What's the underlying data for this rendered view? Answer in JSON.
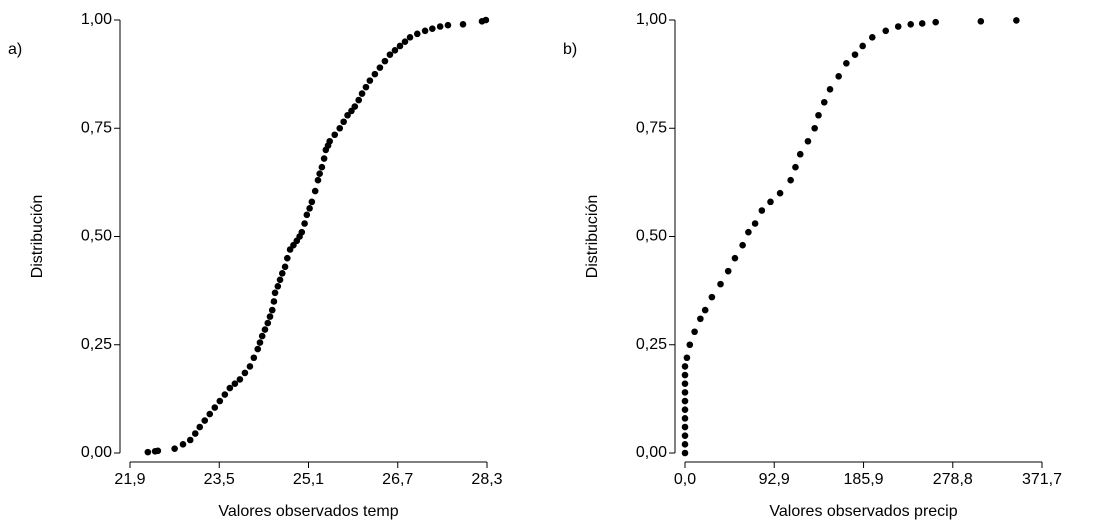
{
  "chart_data": [
    {
      "type": "scatter",
      "panel_label": "a)",
      "x_label": "Valores observados temp",
      "y_label": "Distribución",
      "color": "#000000",
      "x": [
        22.22,
        22.35,
        22.4,
        22.7,
        22.85,
        22.98,
        23.07,
        23.15,
        23.24,
        23.33,
        23.42,
        23.51,
        23.6,
        23.69,
        23.78,
        23.87,
        23.96,
        24.05,
        24.12,
        24.19,
        24.23,
        24.27,
        24.32,
        24.37,
        24.41,
        24.45,
        24.48,
        24.5,
        24.55,
        24.59,
        24.63,
        24.68,
        24.72,
        24.77,
        24.83,
        24.89,
        24.94,
        24.98,
        25.03,
        25.07,
        25.12,
        25.16,
        25.22,
        25.27,
        25.3,
        25.34,
        25.38,
        25.41,
        25.45,
        25.48,
        25.57,
        25.66,
        25.73,
        25.8,
        25.87,
        25.93,
        26.0,
        26.06,
        26.13,
        26.2,
        26.29,
        26.38,
        26.47,
        26.56,
        26.65,
        26.74,
        26.83,
        26.92,
        27.05,
        27.19,
        27.32,
        27.46,
        27.6,
        27.87,
        28.21,
        28.28
      ],
      "values": [
        0.002,
        0.004,
        0.005,
        0.01,
        0.02,
        0.03,
        0.045,
        0.06,
        0.075,
        0.09,
        0.105,
        0.12,
        0.135,
        0.15,
        0.16,
        0.17,
        0.185,
        0.2,
        0.22,
        0.24,
        0.255,
        0.27,
        0.285,
        0.3,
        0.315,
        0.33,
        0.35,
        0.37,
        0.385,
        0.4,
        0.415,
        0.43,
        0.45,
        0.47,
        0.48,
        0.49,
        0.5,
        0.51,
        0.53,
        0.55,
        0.565,
        0.58,
        0.605,
        0.63,
        0.645,
        0.66,
        0.68,
        0.7,
        0.71,
        0.72,
        0.735,
        0.75,
        0.765,
        0.78,
        0.79,
        0.8,
        0.815,
        0.83,
        0.845,
        0.86,
        0.875,
        0.89,
        0.905,
        0.92,
        0.93,
        0.94,
        0.95,
        0.96,
        0.968,
        0.975,
        0.98,
        0.985,
        0.988,
        0.99,
        0.997,
        1.0
      ],
      "xlim": [
        21.9,
        28.3
      ],
      "xticks": [
        {
          "value": 21.9,
          "label": "21,9"
        },
        {
          "value": 23.5,
          "label": "23,5"
        },
        {
          "value": 25.1,
          "label": "25,1"
        },
        {
          "value": 26.7,
          "label": "26,7"
        },
        {
          "value": 28.3,
          "label": "28,3"
        }
      ],
      "ylim": [
        0,
        1
      ],
      "yticks": [
        {
          "value": 0,
          "label": "0,00"
        },
        {
          "value": 0.25,
          "label": "0,25"
        },
        {
          "value": 0.5,
          "label": "0,50"
        },
        {
          "value": 0.75,
          "label": "0,75"
        },
        {
          "value": 1,
          "label": "1,00"
        }
      ]
    },
    {
      "type": "scatter",
      "panel_label": "b)",
      "x_label": "Valores observados precip",
      "y_label": "Distribución",
      "color": "#000000",
      "x": [
        0,
        0,
        0,
        0,
        0,
        0,
        0,
        0,
        0,
        0,
        0,
        2,
        5,
        10,
        16,
        21,
        28,
        37,
        45,
        52,
        60,
        66,
        73,
        80,
        89,
        99,
        110,
        115,
        120,
        128,
        135,
        139,
        145,
        151,
        160,
        168,
        177,
        185,
        195,
        209,
        222,
        235,
        247,
        261,
        308,
        345
      ],
      "values": [
        0.0,
        0.02,
        0.04,
        0.06,
        0.08,
        0.1,
        0.12,
        0.14,
        0.16,
        0.18,
        0.2,
        0.22,
        0.25,
        0.28,
        0.31,
        0.33,
        0.36,
        0.39,
        0.42,
        0.45,
        0.48,
        0.51,
        0.53,
        0.56,
        0.58,
        0.6,
        0.63,
        0.66,
        0.69,
        0.72,
        0.75,
        0.78,
        0.81,
        0.84,
        0.87,
        0.9,
        0.92,
        0.94,
        0.96,
        0.975,
        0.985,
        0.99,
        0.992,
        0.995,
        0.997,
        0.999
      ],
      "xlim": [
        0,
        371.7
      ],
      "xticks": [
        {
          "value": 0,
          "label": "0,0"
        },
        {
          "value": 92.9,
          "label": "92,9"
        },
        {
          "value": 185.9,
          "label": "185,9"
        },
        {
          "value": 278.8,
          "label": "278,8"
        },
        {
          "value": 371.7,
          "label": "371,7"
        }
      ],
      "ylim": [
        0,
        1
      ],
      "yticks": [
        {
          "value": 0,
          "label": "0,00"
        },
        {
          "value": 0.25,
          "label": "0,25"
        },
        {
          "value": 0.5,
          "label": "0,50"
        },
        {
          "value": 0.75,
          "label": "0,75"
        },
        {
          "value": 1,
          "label": "1,00"
        }
      ]
    }
  ]
}
